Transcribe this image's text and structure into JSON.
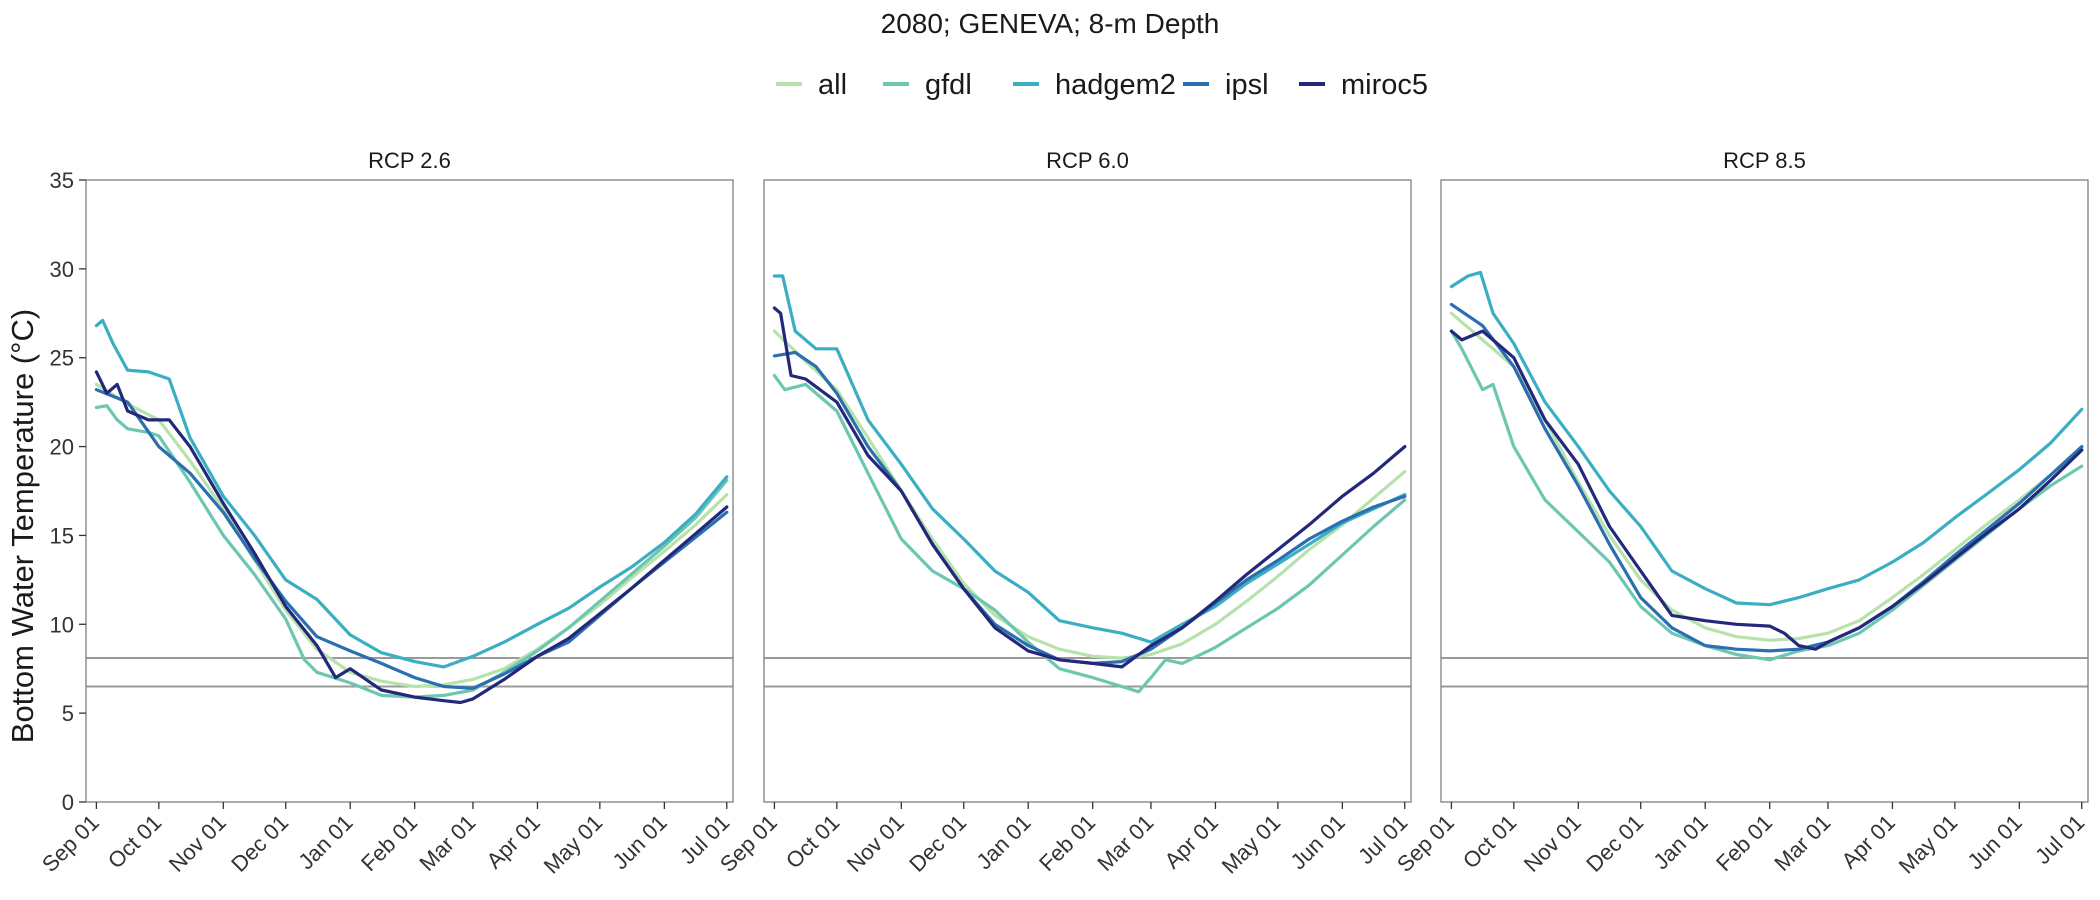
{
  "chart_data": {
    "type": "line",
    "title": "2080; GENEVA; 8-m Depth",
    "ylabel": "Bottom Water Temperature (°C)",
    "xlabel": "",
    "ylim": [
      0,
      35
    ],
    "y_ticks": [
      0,
      5,
      10,
      15,
      20,
      25,
      30,
      35
    ],
    "x_ticks": [
      "Sep 01",
      "Oct 01",
      "Nov 01",
      "Dec 01",
      "Jan 01",
      "Feb 01",
      "Mar 01",
      "Apr 01",
      "May 01",
      "Jun 01",
      "Jul 01"
    ],
    "x_tick_days": [
      0,
      30,
      61,
      91,
      122,
      153,
      181,
      212,
      242,
      273,
      303
    ],
    "x_unit_note": "days from Sep 01",
    "xlim": [
      -5,
      306
    ],
    "reference_lines": [
      8.1,
      6.5
    ],
    "legend_position": "top",
    "grid": false,
    "series_colors": {
      "all": "#b7e2ab",
      "gfdl": "#6cc6b0",
      "hadgem2": "#3aaec3",
      "ipsl": "#2b6fb0",
      "miroc5": "#23287a"
    },
    "panels": [
      {
        "label": "RCP 2.6",
        "series": [
          {
            "name": "all",
            "x": [
              0,
              15,
              30,
              45,
              61,
              76,
              91,
              106,
              122,
              137,
              153,
              167,
              181,
              196,
              212,
              227,
              242,
              257,
              273,
              288,
              303
            ],
            "y": [
              23.5,
              22.4,
              21.5,
              19.2,
              16.5,
              13.6,
              10.8,
              8.6,
              7.3,
              6.8,
              6.5,
              6.6,
              6.9,
              7.5,
              8.6,
              9.8,
              11.1,
              12.6,
              14.1,
              15.6,
              17.3
            ]
          },
          {
            "name": "gfdl",
            "x": [
              0,
              5,
              10,
              15,
              25,
              30,
              45,
              61,
              76,
              91,
              100,
              106,
              122,
              137,
              153,
              167,
              181,
              196,
              212,
              227,
              242,
              257,
              273,
              288,
              303
            ],
            "y": [
              22.2,
              22.3,
              21.5,
              21.0,
              20.8,
              20.6,
              18.0,
              15.0,
              12.8,
              10.3,
              8.0,
              7.3,
              6.7,
              6.0,
              5.9,
              6.0,
              6.3,
              7.3,
              8.5,
              9.8,
              11.3,
              12.8,
              14.4,
              16.0,
              18.1
            ]
          },
          {
            "name": "hadgem2",
            "x": [
              0,
              3,
              8,
              15,
              25,
              35,
              45,
              61,
              76,
              91,
              106,
              122,
              137,
              153,
              167,
              181,
              196,
              212,
              227,
              242,
              257,
              273,
              288,
              303
            ],
            "y": [
              26.8,
              27.1,
              25.8,
              24.3,
              24.2,
              23.8,
              20.5,
              17.2,
              15.0,
              12.5,
              11.4,
              9.4,
              8.4,
              7.9,
              7.6,
              8.2,
              9.0,
              10.0,
              10.9,
              12.1,
              13.2,
              14.6,
              16.2,
              18.3
            ]
          },
          {
            "name": "ipsl",
            "x": [
              0,
              15,
              30,
              45,
              61,
              76,
              91,
              106,
              122,
              137,
              153,
              167,
              181,
              196,
              212,
              227,
              242,
              257,
              273,
              288,
              303
            ],
            "y": [
              23.2,
              22.5,
              20.0,
              18.5,
              16.3,
              13.7,
              11.3,
              9.3,
              8.5,
              7.8,
              7.0,
              6.5,
              6.4,
              7.2,
              8.2,
              9.0,
              10.5,
              12.0,
              13.5,
              14.9,
              16.3
            ]
          },
          {
            "name": "miroc5",
            "x": [
              0,
              5,
              10,
              15,
              25,
              35,
              45,
              61,
              76,
              91,
              106,
              115,
              122,
              137,
              153,
              167,
              175,
              181,
              196,
              212,
              227,
              242,
              257,
              273,
              288,
              303
            ],
            "y": [
              24.2,
              23.0,
              23.5,
              22.0,
              21.5,
              21.5,
              20.0,
              16.8,
              14.0,
              11.0,
              8.8,
              7.0,
              7.5,
              6.3,
              5.9,
              5.7,
              5.6,
              5.8,
              6.9,
              8.2,
              9.2,
              10.6,
              12.0,
              13.6,
              15.1,
              16.6
            ]
          }
        ]
      },
      {
        "label": "RCP 6.0",
        "series": [
          {
            "name": "all",
            "x": [
              0,
              15,
              30,
              45,
              61,
              76,
              91,
              106,
              122,
              137,
              153,
              167,
              181,
              196,
              212,
              227,
              242,
              257,
              273,
              288,
              303
            ],
            "y": [
              26.5,
              24.8,
              23.2,
              20.5,
              17.5,
              14.8,
              12.3,
              10.5,
              9.3,
              8.6,
              8.2,
              8.1,
              8.3,
              8.9,
              10.0,
              11.3,
              12.7,
              14.2,
              15.6,
              17.1,
              18.6
            ]
          },
          {
            "name": "gfdl",
            "x": [
              0,
              5,
              15,
              30,
              45,
              61,
              76,
              91,
              106,
              122,
              137,
              153,
              167,
              175,
              181,
              188,
              196,
              212,
              227,
              242,
              257,
              273,
              288,
              303
            ],
            "y": [
              24.0,
              23.2,
              23.5,
              22.0,
              18.5,
              14.8,
              13.0,
              12.0,
              10.8,
              9.0,
              7.5,
              7.0,
              6.5,
              6.2,
              7.0,
              8.0,
              7.8,
              8.7,
              9.8,
              10.9,
              12.2,
              13.9,
              15.5,
              17.0
            ]
          },
          {
            "name": "hadgem2",
            "x": [
              0,
              4,
              10,
              20,
              30,
              45,
              61,
              76,
              91,
              106,
              122,
              137,
              153,
              167,
              181,
              196,
              212,
              227,
              242,
              257,
              273,
              288,
              303
            ],
            "y": [
              29.6,
              29.6,
              26.5,
              25.5,
              25.5,
              21.5,
              19.0,
              16.5,
              14.8,
              13.0,
              11.8,
              10.2,
              9.8,
              9.5,
              9.0,
              10.0,
              11.0,
              12.3,
              13.4,
              14.5,
              15.7,
              16.5,
              17.3
            ]
          },
          {
            "name": "ipsl",
            "x": [
              0,
              10,
              20,
              30,
              45,
              61,
              76,
              91,
              106,
              122,
              137,
              153,
              167,
              181,
              196,
              212,
              227,
              242,
              257,
              273,
              288,
              303
            ],
            "y": [
              25.1,
              25.3,
              24.5,
              23.0,
              20.0,
              17.5,
              14.5,
              12.0,
              10.0,
              8.8,
              8.0,
              7.8,
              7.9,
              8.6,
              9.8,
              11.2,
              12.5,
              13.6,
              14.8,
              15.8,
              16.6,
              17.2
            ]
          },
          {
            "name": "miroc5",
            "x": [
              0,
              3,
              8,
              15,
              30,
              45,
              61,
              76,
              91,
              106,
              122,
              137,
              153,
              167,
              181,
              196,
              212,
              227,
              242,
              257,
              273,
              288,
              303
            ],
            "y": [
              27.8,
              27.5,
              24.0,
              23.8,
              22.5,
              19.5,
              17.5,
              14.5,
              12.0,
              9.8,
              8.5,
              8.0,
              7.8,
              7.6,
              8.8,
              9.8,
              11.3,
              12.8,
              14.2,
              15.6,
              17.2,
              18.5,
              20.0
            ]
          }
        ]
      },
      {
        "label": "RCP 8.5",
        "series": [
          {
            "name": "all",
            "x": [
              0,
              15,
              30,
              45,
              61,
              76,
              91,
              106,
              122,
              137,
              153,
              167,
              181,
              196,
              212,
              227,
              242,
              257,
              273,
              288,
              303
            ],
            "y": [
              27.5,
              26.0,
              24.5,
              21.5,
              18.0,
              15.0,
              12.5,
              10.8,
              9.8,
              9.3,
              9.1,
              9.2,
              9.5,
              10.2,
              11.5,
              12.8,
              14.2,
              15.6,
              17.0,
              18.4,
              19.9
            ]
          },
          {
            "name": "gfdl",
            "x": [
              0,
              5,
              15,
              20,
              30,
              45,
              61,
              76,
              91,
              106,
              122,
              137,
              153,
              167,
              181,
              196,
              212,
              227,
              242,
              257,
              273,
              288,
              303
            ],
            "y": [
              26.5,
              25.5,
              23.2,
              23.5,
              20.0,
              17.0,
              15.2,
              13.5,
              11.0,
              9.5,
              8.8,
              8.3,
              8.0,
              8.5,
              8.8,
              9.5,
              10.8,
              12.2,
              13.6,
              15.0,
              16.5,
              17.8,
              18.9
            ]
          },
          {
            "name": "hadgem2",
            "x": [
              0,
              8,
              14,
              20,
              30,
              45,
              61,
              76,
              91,
              106,
              122,
              137,
              153,
              167,
              181,
              196,
              212,
              227,
              242,
              257,
              273,
              288,
              303
            ],
            "y": [
              29.0,
              29.6,
              29.8,
              27.5,
              25.8,
              22.5,
              20.0,
              17.5,
              15.5,
              13.0,
              12.0,
              11.2,
              11.1,
              11.5,
              12.0,
              12.5,
              13.5,
              14.6,
              16.0,
              17.3,
              18.7,
              20.2,
              22.1
            ]
          },
          {
            "name": "ipsl",
            "x": [
              0,
              15,
              30,
              45,
              61,
              76,
              91,
              106,
              122,
              137,
              153,
              167,
              181,
              196,
              212,
              227,
              242,
              257,
              273,
              288,
              303
            ],
            "y": [
              28.0,
              26.8,
              24.5,
              21.0,
              17.8,
              14.5,
              11.5,
              9.8,
              8.8,
              8.6,
              8.5,
              8.6,
              9.0,
              9.8,
              11.0,
              12.4,
              13.9,
              15.3,
              16.8,
              18.4,
              20.0
            ]
          },
          {
            "name": "miroc5",
            "x": [
              0,
              5,
              15,
              20,
              30,
              45,
              61,
              76,
              91,
              106,
              122,
              137,
              153,
              160,
              167,
              175,
              181,
              196,
              212,
              227,
              242,
              257,
              273,
              288,
              303
            ],
            "y": [
              26.5,
              26.0,
              26.5,
              26.0,
              25.0,
              21.5,
              19.0,
              15.5,
              13.0,
              10.5,
              10.2,
              10.0,
              9.9,
              9.5,
              8.8,
              8.6,
              9.0,
              9.8,
              11.0,
              12.3,
              13.7,
              15.1,
              16.5,
              18.1,
              19.8
            ]
          }
        ]
      }
    ]
  }
}
